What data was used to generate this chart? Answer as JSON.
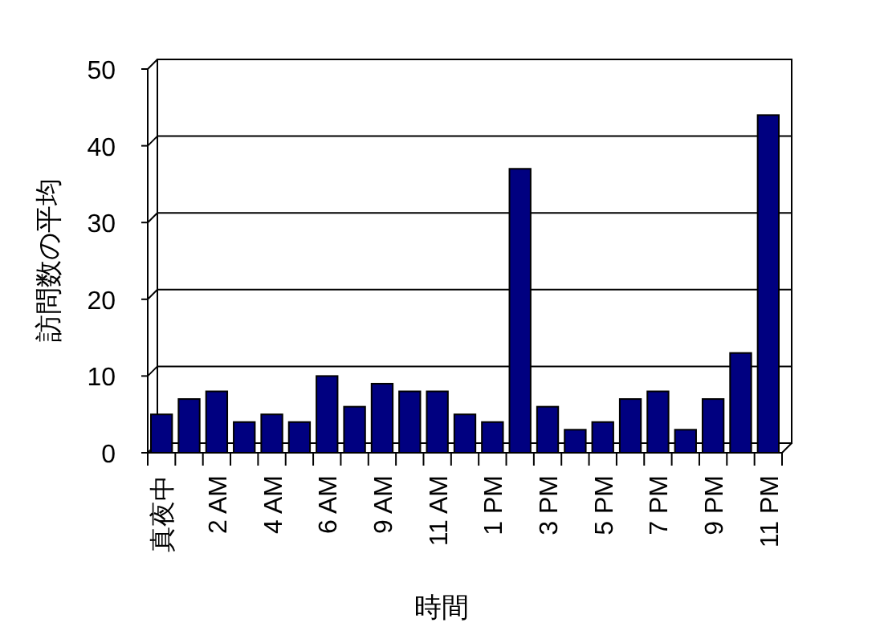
{
  "chart_data": {
    "type": "bar",
    "xlabel": "時間",
    "ylabel": "訪問数の平均",
    "categories": [
      "真夜中",
      null,
      "2 AM",
      null,
      "4 AM",
      null,
      "6 AM",
      null,
      "9 AM",
      null,
      "11 AM",
      null,
      "1 PM",
      null,
      "3 PM",
      null,
      "5 PM",
      null,
      "7 PM",
      null,
      "9 PM",
      null,
      "11 PM"
    ],
    "values": [
      5,
      7,
      8,
      4,
      5,
      4,
      10,
      6,
      9,
      8,
      8,
      5,
      4,
      37,
      6,
      3,
      4,
      7,
      8,
      3,
      7,
      13,
      44
    ],
    "color": "#000080",
    "ylim": [
      0,
      50
    ],
    "yticks": [
      0,
      10,
      20,
      30,
      40,
      50
    ],
    "grid": "y"
  }
}
